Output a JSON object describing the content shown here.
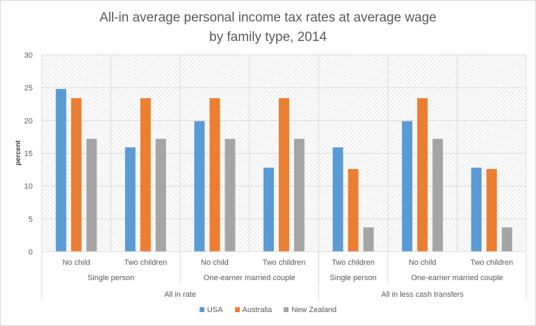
{
  "chart_data": {
    "type": "bar",
    "title": "All-in average personal income tax rates at average wage",
    "subtitle": "by family type, 2014",
    "xlabel": "",
    "ylabel": "percent",
    "ylim": [
      0,
      30
    ],
    "yticks": [
      0,
      5,
      10,
      15,
      20,
      25,
      30
    ],
    "grid": true,
    "legend_position": "bottom",
    "categories": [
      {
        "family": "No child",
        "type": "Single person",
        "measure": "All in rate"
      },
      {
        "family": "Two children",
        "type": "Single person",
        "measure": "All in rate"
      },
      {
        "family": "No child",
        "type": "One-earner married couple",
        "measure": "All in rate"
      },
      {
        "family": "Two children",
        "type": "One-earner married couple",
        "measure": "All in rate"
      },
      {
        "family": "Two children",
        "type": "Single person",
        "measure": "All in less cash transfers"
      },
      {
        "family": "No child",
        "type": "One-earner married couple",
        "measure": "All in less cash transfers"
      },
      {
        "family": "Two children",
        "type": "One-earner married couple",
        "measure": "All in less cash transfers"
      }
    ],
    "level2_groups": [
      {
        "label": "Single person",
        "span": 2
      },
      {
        "label": "One-earner married couple",
        "span": 2
      },
      {
        "label": "Single person",
        "span": 1
      },
      {
        "label": "One-earner married couple",
        "span": 2
      }
    ],
    "level3_groups": [
      {
        "label": "All in rate",
        "span": 4
      },
      {
        "label": "All in less cash transfers",
        "span": 3
      }
    ],
    "series": [
      {
        "name": "USA",
        "color": "#5b9bd5",
        "values": [
          24.8,
          15.9,
          19.9,
          12.8,
          15.9,
          19.9,
          12.8
        ]
      },
      {
        "name": "Australia",
        "color": "#ed7d31",
        "values": [
          23.4,
          23.4,
          23.4,
          23.4,
          12.6,
          23.4,
          12.6
        ]
      },
      {
        "name": "New Zealand",
        "color": "#a5a5a5",
        "values": [
          17.2,
          17.2,
          17.2,
          17.2,
          3.7,
          17.2,
          3.7
        ]
      }
    ]
  }
}
